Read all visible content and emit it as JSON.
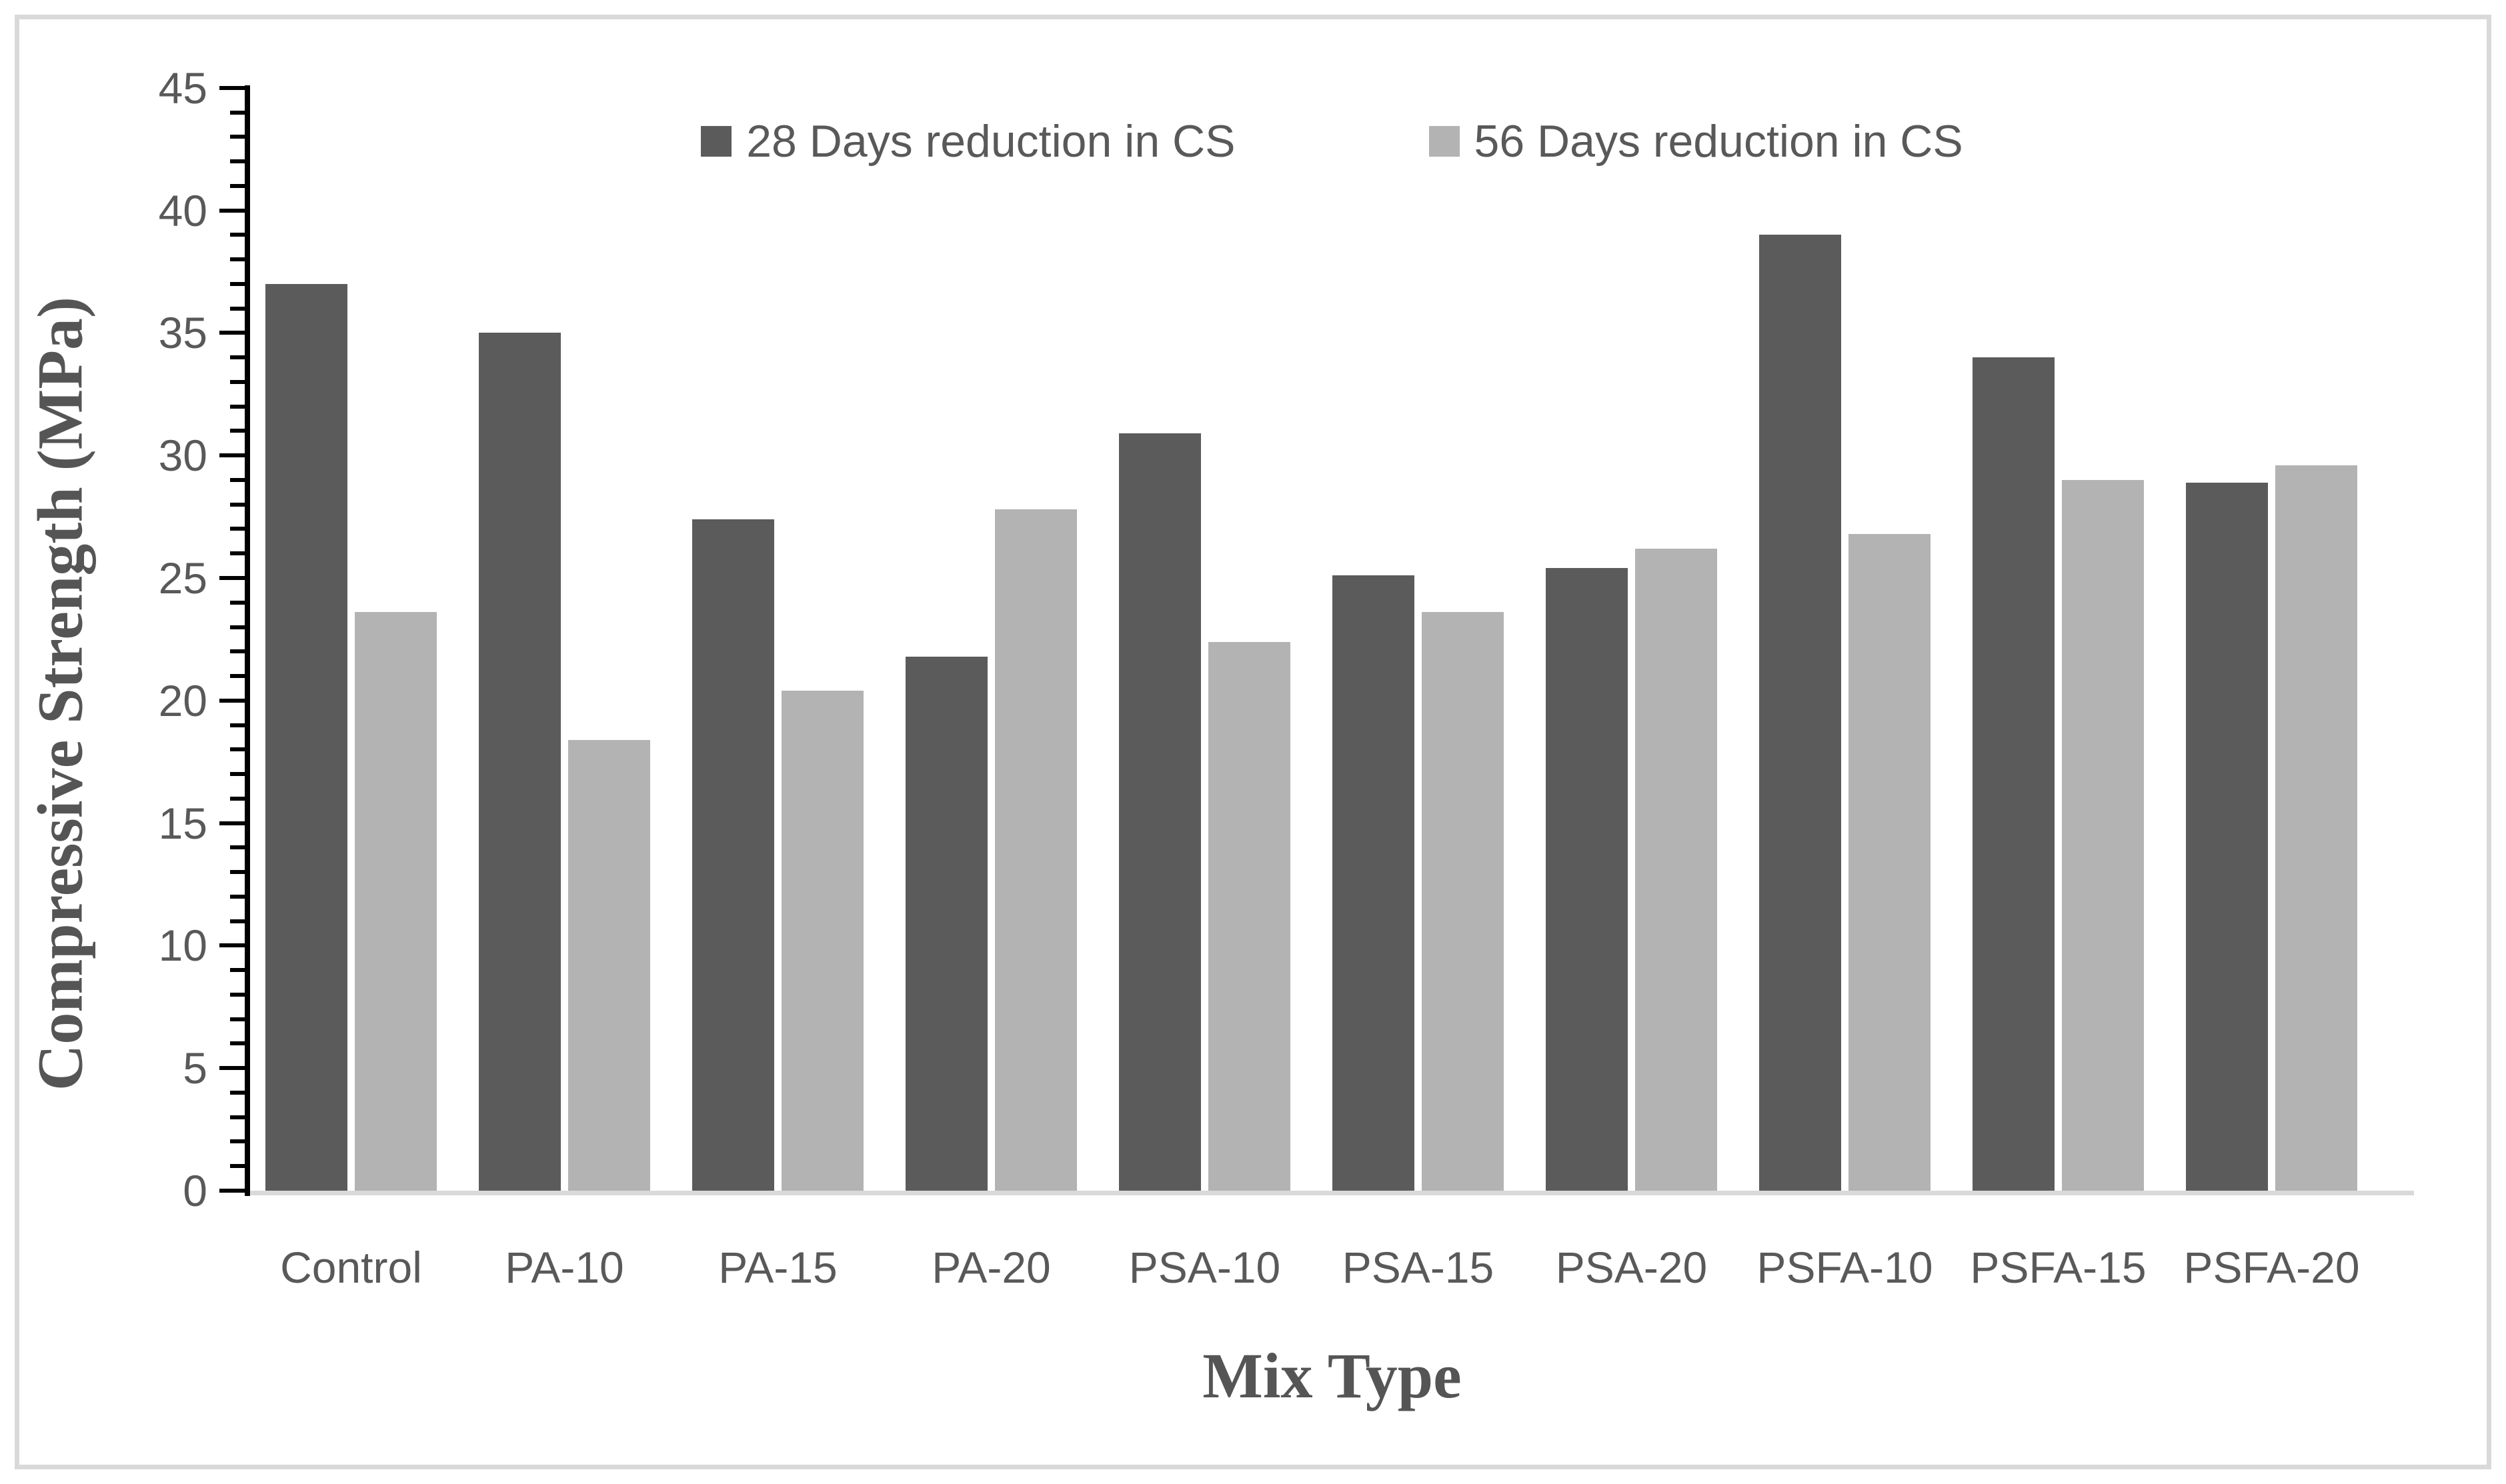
{
  "figure": {
    "background": "#ffffff",
    "border_color": "#d9d9d9"
  },
  "legend": {
    "position": "top-center",
    "entries": [
      {
        "label": "28 Days reduction in CS",
        "color": "#5b5b5b"
      },
      {
        "label": "56 Days reduction in CS",
        "color": "#b3b3b3"
      }
    ]
  },
  "y_axis": {
    "title": "Compressive Strength (MPa)",
    "min": 0,
    "max": 45,
    "major_step": 5,
    "minor_step": 1,
    "tick_labels": [
      "0",
      "5",
      "10",
      "15",
      "20",
      "25",
      "30",
      "35",
      "40",
      "45"
    ],
    "line_color": "#000000",
    "label_color": "#595959"
  },
  "x_axis": {
    "title": "Mix Type",
    "line_color": "#d9d9d9",
    "label_color": "#595959"
  },
  "chart_data": {
    "type": "bar",
    "title": "",
    "xlabel": "Mix Type",
    "ylabel": "Compressive Strength (MPa)",
    "ylim": [
      0,
      45
    ],
    "grid": false,
    "legend_position": "top",
    "categories": [
      "Control",
      "PA-10",
      "PA-15",
      "PA-20",
      "PSA-10",
      "PSA-15",
      "PSA-20",
      "PSFA-10",
      "PSFA-15",
      "PSFA-20"
    ],
    "series": [
      {
        "name": "28 Days reduction in CS",
        "color": "#5b5b5b",
        "values": [
          37,
          35,
          27.4,
          21.8,
          30.9,
          25.1,
          25.4,
          39,
          34,
          28.9
        ]
      },
      {
        "name": "56 Days reduction in CS",
        "color": "#b3b3b3",
        "values": [
          23.6,
          18.4,
          20.4,
          27.8,
          22.4,
          23.6,
          26.2,
          26.8,
          29,
          29.6
        ]
      }
    ]
  }
}
